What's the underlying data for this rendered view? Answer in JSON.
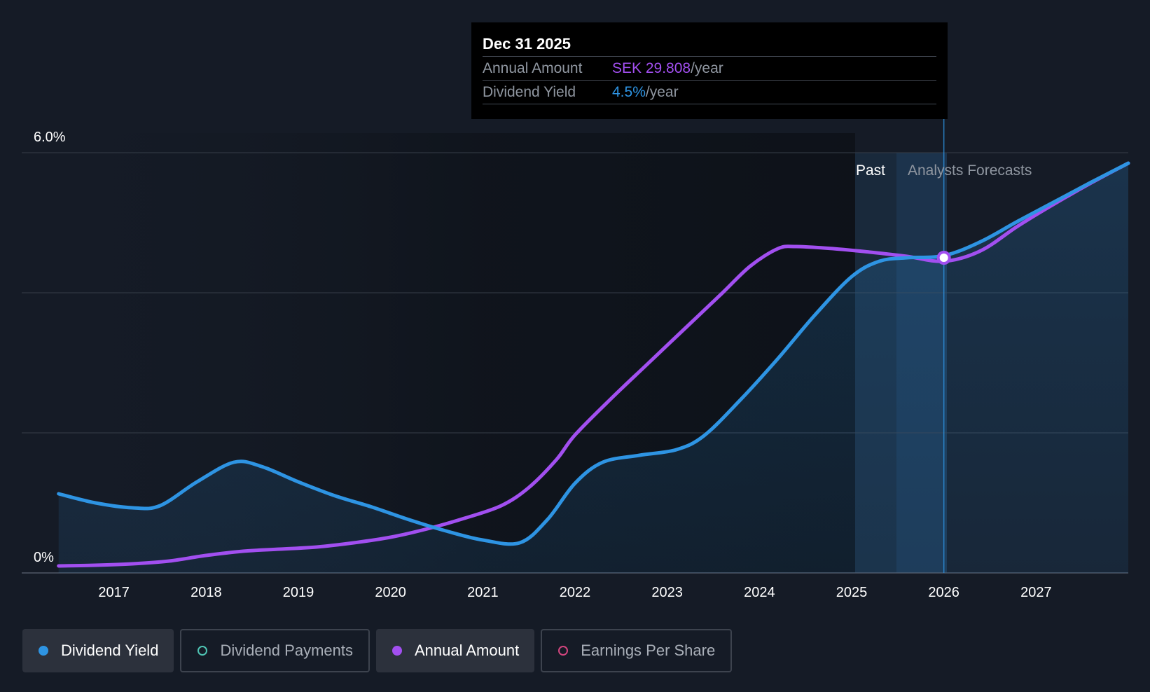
{
  "tooltip": {
    "date": "Dec 31 2025",
    "annual_label": "Annual Amount",
    "annual_value": "SEK 29.808",
    "annual_unit": "/year",
    "yield_label": "Dividend Yield",
    "yield_value": "4.5%",
    "yield_unit": "/year"
  },
  "regions": {
    "past_label": "Past",
    "forecast_label": "Analysts Forecasts"
  },
  "legend": [
    {
      "label": "Dividend Yield",
      "color": "#2e94e3",
      "active": true,
      "filled": true
    },
    {
      "label": "Dividend Payments",
      "color": "#4fc5b4",
      "active": false,
      "filled": false
    },
    {
      "label": "Annual Amount",
      "color": "#a24ff0",
      "active": true,
      "filled": true
    },
    {
      "label": "Earnings Per Share",
      "color": "#d2457e",
      "active": false,
      "filled": false
    }
  ],
  "colors": {
    "yield": "#2e94e3",
    "annual": "#a24ff0",
    "background": "#151b26"
  },
  "chart_data": {
    "type": "line",
    "x_range": [
      2016.0,
      2028.0
    ],
    "xticks": [
      2017,
      2018,
      2019,
      2020,
      2021,
      2022,
      2023,
      2024,
      2025,
      2026,
      2027
    ],
    "y_range": [
      0,
      6.0
    ],
    "yticks_labeled": [
      "0%",
      "6.0%"
    ],
    "gridlines": [
      0,
      2,
      4,
      6
    ],
    "past_forecast_boundary": 2025.5,
    "highlight_x": 2026.0,
    "series": [
      {
        "name": "Dividend Yield",
        "x": [
          2016.4,
          2016.8,
          2017.2,
          2017.5,
          2017.9,
          2018.3,
          2018.6,
          2019.0,
          2019.4,
          2019.8,
          2020.2,
          2020.6,
          2021.0,
          2021.4,
          2021.7,
          2022.0,
          2022.3,
          2022.7,
          2023.1,
          2023.4,
          2023.8,
          2024.2,
          2024.6,
          2025.0,
          2025.3,
          2025.6,
          2026.0,
          2026.4,
          2026.8,
          2027.2,
          2027.6,
          2028.0
        ],
        "values": [
          1.13,
          1.0,
          0.93,
          0.96,
          1.3,
          1.58,
          1.52,
          1.3,
          1.1,
          0.94,
          0.76,
          0.6,
          0.47,
          0.43,
          0.76,
          1.28,
          1.58,
          1.68,
          1.76,
          1.96,
          2.48,
          3.06,
          3.68,
          4.23,
          4.45,
          4.5,
          4.53,
          4.73,
          5.02,
          5.3,
          5.58,
          5.85
        ]
      },
      {
        "name": "Annual Amount",
        "x": [
          2016.4,
          2016.8,
          2017.2,
          2017.6,
          2018.0,
          2018.4,
          2018.8,
          2019.2,
          2019.6,
          2020.0,
          2020.4,
          2020.8,
          2021.2,
          2021.5,
          2021.8,
          2022.0,
          2022.4,
          2022.8,
          2023.2,
          2023.6,
          2023.9,
          2024.2,
          2024.4,
          2024.8,
          2025.2,
          2025.6,
          2026.0,
          2026.4,
          2026.8,
          2027.2,
          2027.6,
          2028.0
        ],
        "values": [
          0.1,
          0.11,
          0.13,
          0.17,
          0.25,
          0.31,
          0.34,
          0.37,
          0.43,
          0.51,
          0.63,
          0.78,
          0.96,
          1.22,
          1.62,
          1.97,
          2.5,
          3.0,
          3.5,
          4.0,
          4.38,
          4.63,
          4.66,
          4.63,
          4.58,
          4.52,
          4.45,
          4.6,
          4.95,
          5.27,
          5.57,
          5.85
        ]
      }
    ],
    "highlight_point": {
      "x": 2026.0,
      "yield": 4.5,
      "annual": "SEK 29.808"
    }
  }
}
